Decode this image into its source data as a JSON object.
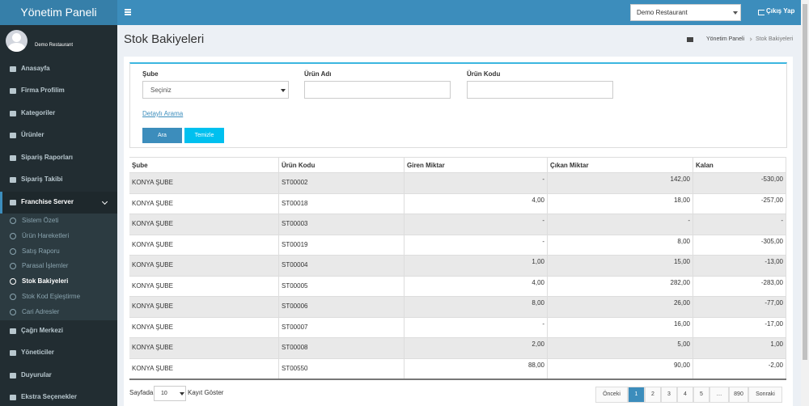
{
  "header": {
    "logo": "Yönetim Paneli",
    "restaurant_select": "Demo Restaurant",
    "logout": "Çıkış Yap"
  },
  "sidebar": {
    "user": "Demo Restaurant",
    "menu": [
      "Anasayfa",
      "Firma Profilim",
      "Kategoriler",
      "Ürünler",
      "Sipariş Raporları",
      "Sipariş Takibi"
    ],
    "franchise": {
      "label": "Franchise Server",
      "items": [
        "Sistem Özeti",
        "Ürün Hareketleri",
        "Satış Raporu",
        "Parasal İşlemler",
        "Stok Bakiyeleri",
        "Stok Kod Eşleştirme",
        "Cari Adresler"
      ]
    },
    "menu_bottom": [
      "Çağrı Merkezi",
      "Yöneticiler",
      "Duyurular",
      "Ekstra Seçenekler"
    ]
  },
  "content": {
    "page_title": "Stok Bakiyeleri",
    "breadcrumb": [
      "Yönetim Paneli",
      "Stok Bakiyeleri"
    ],
    "filters": {
      "labels": [
        "Şube",
        "Ürün Adı",
        "Ürün Kodu"
      ],
      "select_placeholder": "Seçiniz",
      "detail_link": "Detaylı Arama",
      "buttons": [
        "Ara",
        "Temizle"
      ]
    },
    "table": {
      "columns": [
        "Şube",
        "Ürün Kodu",
        "Giren Miktar",
        "Çıkan Miktar",
        "Kalan"
      ],
      "rows": [
        [
          "KONYA ŞUBE",
          "ST00002",
          "-",
          "142,00",
          "-530,00"
        ],
        [
          "KONYA ŞUBE",
          "ST00018",
          "4,00",
          "18,00",
          "-257,00"
        ],
        [
          "KONYA ŞUBE",
          "ST00003",
          "-",
          "-",
          "-"
        ],
        [
          "KONYA ŞUBE",
          "ST00019",
          "-",
          "8,00",
          "-305,00"
        ],
        [
          "KONYA ŞUBE",
          "ST00004",
          "1,00",
          "15,00",
          "-13,00"
        ],
        [
          "KONYA ŞUBE",
          "ST00005",
          "4,00",
          "282,00",
          "-283,00"
        ],
        [
          "KONYA ŞUBE",
          "ST00006",
          "8,00",
          "26,00",
          "-77,00"
        ],
        [
          "KONYA ŞUBE",
          "ST00007",
          "-",
          "16,00",
          "-17,00"
        ],
        [
          "KONYA ŞUBE",
          "ST00008",
          "2,00",
          "5,00",
          "1,00"
        ],
        [
          "KONYA ŞUBE",
          "ST00550",
          "88,00",
          "90,00",
          "-2,00"
        ]
      ]
    },
    "pagination": {
      "per_page_label": "Sayfada",
      "per_page": "10",
      "per_page_suffix": "Kayıt Göster",
      "pages": [
        "Önceki",
        "1",
        "2",
        "3",
        "4",
        "5",
        "…",
        "890",
        "Sonraki"
      ],
      "active": "1"
    }
  }
}
